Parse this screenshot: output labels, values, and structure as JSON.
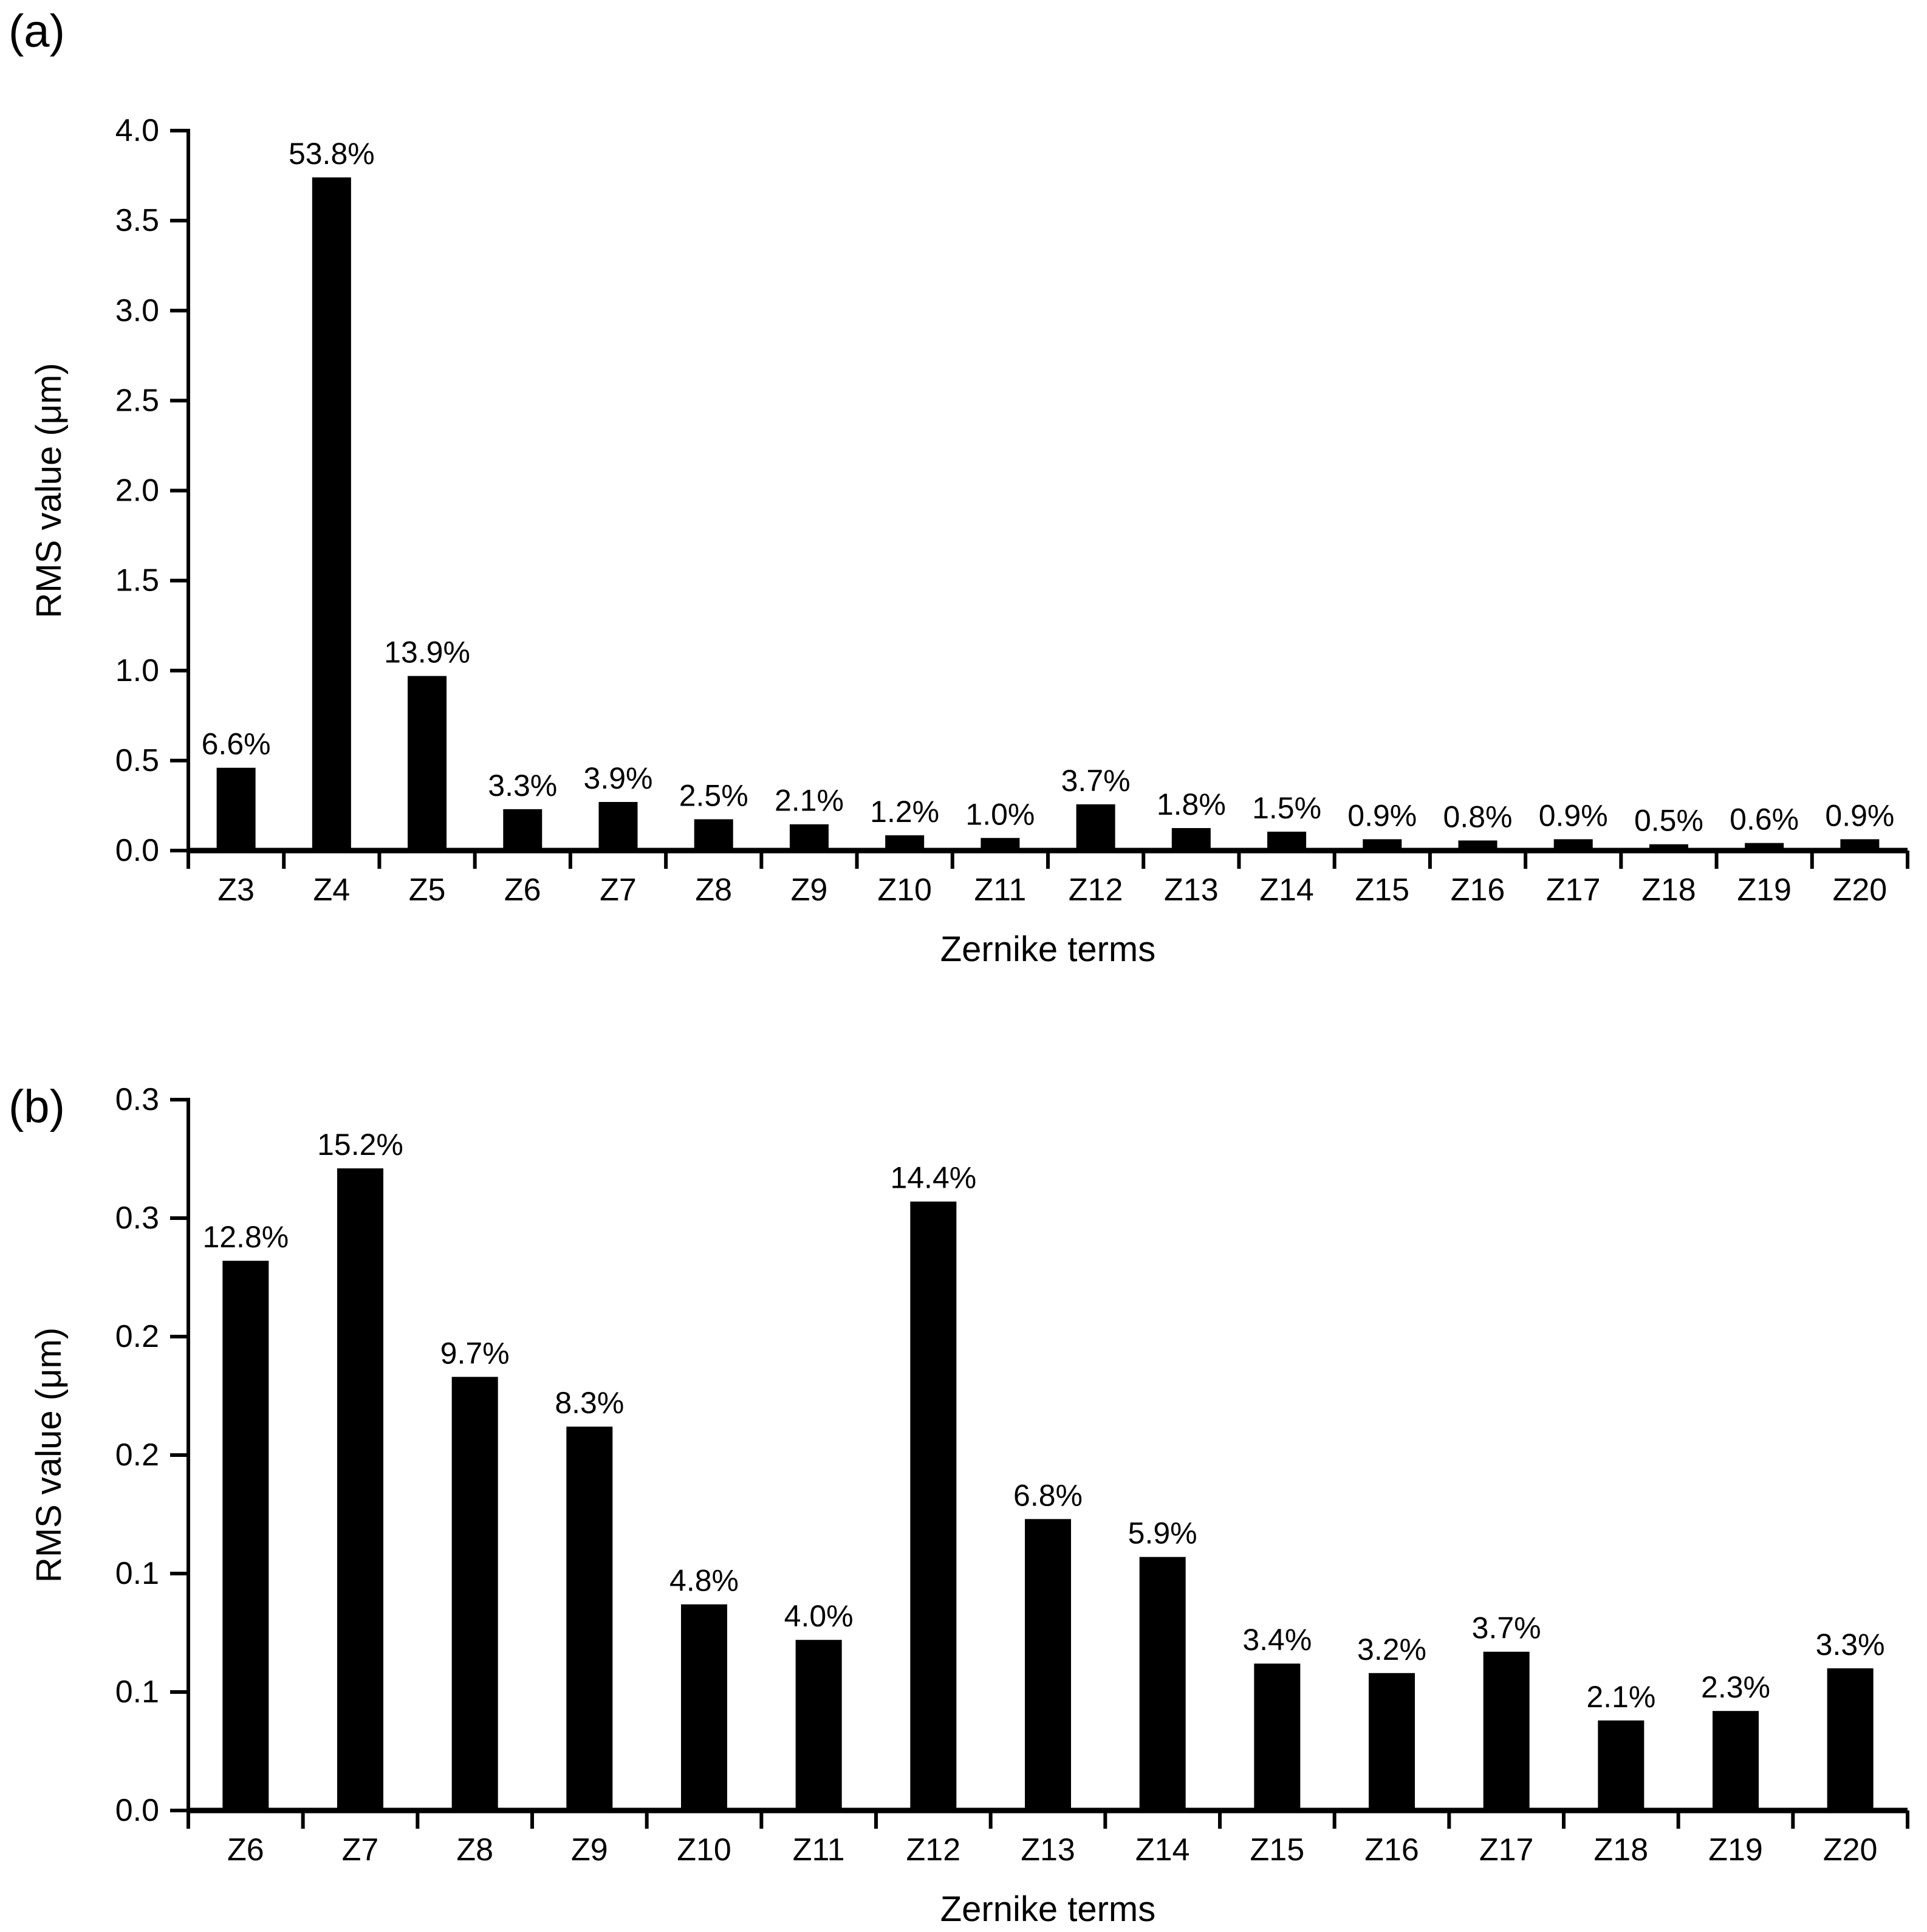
{
  "figure_title": "",
  "accent_color": "#000000",
  "background_color": "#ffffff",
  "chart_data": [
    {
      "panel_label": "(a)",
      "type": "bar",
      "title": "",
      "xlabel": "Zernike terms",
      "ylabel": "RMS value (μm)",
      "legend": "none",
      "grid": false,
      "bar_color": "#000000",
      "categories": [
        "Z3",
        "Z4",
        "Z5",
        "Z6",
        "Z7",
        "Z8",
        "Z9",
        "Z10",
        "Z11",
        "Z12",
        "Z13",
        "Z14",
        "Z15",
        "Z16",
        "Z17",
        "Z18",
        "Z19",
        "Z20"
      ],
      "values": [
        0.46,
        3.74,
        0.97,
        0.23,
        0.27,
        0.174,
        0.146,
        0.085,
        0.07,
        0.257,
        0.125,
        0.105,
        0.063,
        0.056,
        0.063,
        0.035,
        0.042,
        0.063
      ],
      "bar_labels": [
        "6.6%",
        "53.8%",
        "13.9%",
        "3.3%",
        "3.9%",
        "2.5%",
        "2.1%",
        "1.2%",
        "1.0%",
        "3.7%",
        "1.8%",
        "1.5%",
        "0.9%",
        "0.8%",
        "0.9%",
        "0.5%",
        "0.6%",
        "0.9%"
      ],
      "ylim": [
        0,
        4.0
      ],
      "ytick_values": [
        4.0,
        3.5,
        3.0,
        2.5,
        2.0,
        1.5,
        1.0,
        0.5,
        0.0
      ],
      "ytick_labels": [
        "4.0",
        "3.5",
        "3.0",
        "2.5",
        "2.0",
        "1.5",
        "1.0",
        "0.5",
        "0.0"
      ]
    },
    {
      "panel_label": "(b)",
      "type": "bar",
      "title": "",
      "xlabel": "Zernike terms",
      "ylabel": "RMS value (μm)",
      "legend": "none",
      "grid": false,
      "bar_color": "#000000",
      "categories": [
        "Z6",
        "Z7",
        "Z8",
        "Z9",
        "Z10",
        "Z11",
        "Z12",
        "Z13",
        "Z14",
        "Z15",
        "Z16",
        "Z17",
        "Z18",
        "Z19",
        "Z20"
      ],
      "values": [
        0.232,
        0.271,
        0.183,
        0.162,
        0.087,
        0.072,
        0.257,
        0.123,
        0.107,
        0.062,
        0.058,
        0.067,
        0.038,
        0.042,
        0.06
      ],
      "bar_labels": [
        "12.8%",
        "15.2%",
        "9.7%",
        "8.3%",
        "4.8%",
        "4.0%",
        "14.4%",
        "6.8%",
        "5.9%",
        "3.4%",
        "3.2%",
        "3.7%",
        "2.1%",
        "2.3%",
        "3.3%"
      ],
      "ylim": [
        0,
        0.3
      ],
      "ytick_values": [
        0.3,
        0.25,
        0.2,
        0.15,
        0.1,
        0.05,
        0.0
      ],
      "ytick_labels": [
        "0.3",
        "0.3",
        "0.2",
        "0.2",
        "0.1",
        "0.1",
        "0.0"
      ]
    }
  ]
}
